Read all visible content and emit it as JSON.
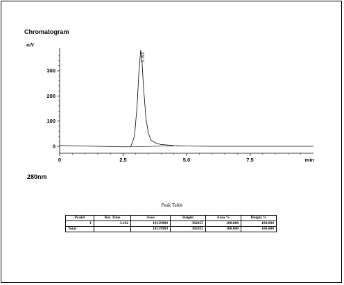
{
  "page": {
    "title": "Chromatogram",
    "unit": "mV",
    "wavelength": "280nm"
  },
  "chart_data": {
    "type": "line",
    "title": "Chromatogram",
    "xlabel": "min",
    "ylabel": "mV",
    "xlim": [
      0,
      10
    ],
    "ylim": [
      -10,
      380
    ],
    "x_ticks": [
      0,
      2.5,
      5.0,
      7.5
    ],
    "x_tick_labels": [
      "0",
      "2.5",
      "5.0",
      "7.5"
    ],
    "y_ticks": [
      0,
      100,
      200,
      300
    ],
    "y_tick_labels": [
      "0",
      "100",
      "200",
      "300"
    ],
    "grid": false,
    "series": [
      {
        "x": [
          0,
          0.5,
          1.0,
          1.5,
          2.0,
          2.5,
          2.8,
          2.95,
          3.05,
          3.12,
          3.192,
          3.25,
          3.3,
          3.4,
          3.5,
          3.6,
          3.8,
          4.0,
          4.5,
          5.0,
          6.0,
          7.0,
          8.0,
          9.0,
          10.0
        ],
        "y": [
          3,
          2,
          1,
          0,
          -1,
          -2,
          -2,
          40,
          160,
          290,
          382,
          330,
          240,
          110,
          50,
          25,
          12,
          7,
          3,
          1,
          0,
          0,
          0,
          0,
          0
        ]
      }
    ],
    "baseline": {
      "x": [
        2.82,
        4.5
      ],
      "y": [
        -2,
        2
      ]
    },
    "annotations": [
      {
        "x": 3.192,
        "y": 382,
        "text": "3.192"
      }
    ]
  },
  "peak_table": {
    "caption": "Peak Table",
    "headers": [
      "Peak#",
      "Ret. Time",
      "Area",
      "Height",
      "Area %",
      "Height %"
    ],
    "rows": [
      [
        "1",
        "3.192",
        "10139989",
        "382055",
        "100.000",
        "100.000"
      ],
      [
        "Total",
        "",
        "10139989",
        "382055",
        "100.000",
        "100.000"
      ]
    ]
  }
}
